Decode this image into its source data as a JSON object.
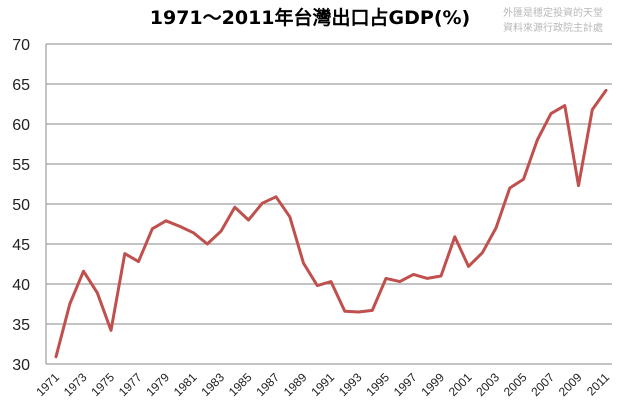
{
  "chart_data": {
    "type": "line",
    "title": "1971～2011年台灣出口占GDP(%)",
    "watermark_lines": [
      "外匯是穩定投資的天堂",
      "資料來源行政院主計處"
    ],
    "ylim": [
      30,
      70
    ],
    "yticks": [
      30,
      35,
      40,
      45,
      50,
      55,
      60,
      65,
      70
    ],
    "grid": true,
    "legend": "none",
    "x": [
      1971,
      1972,
      1973,
      1974,
      1975,
      1976,
      1977,
      1978,
      1979,
      1980,
      1981,
      1982,
      1983,
      1984,
      1985,
      1986,
      1987,
      1988,
      1989,
      1990,
      1991,
      1992,
      1993,
      1994,
      1995,
      1996,
      1997,
      1998,
      1999,
      2000,
      2001,
      2002,
      2003,
      2004,
      2005,
      2006,
      2007,
      2008,
      2009,
      2010,
      2011
    ],
    "xtick_labels": [
      "1971",
      "1973",
      "1975",
      "1977",
      "1979",
      "1981",
      "1983",
      "1985",
      "1987",
      "1989",
      "1991",
      "1993",
      "1995",
      "1997",
      "1999",
      "2001",
      "2003",
      "2005",
      "2007",
      "2009",
      "2011"
    ],
    "series": [
      {
        "color": "#c0504d",
        "values": [
          30.9,
          37.5,
          41.6,
          38.9,
          34.2,
          43.8,
          42.8,
          46.9,
          47.9,
          47.2,
          46.4,
          45.0,
          46.6,
          49.6,
          48.0,
          50.1,
          50.9,
          48.4,
          42.6,
          39.8,
          40.3,
          36.6,
          36.5,
          36.7,
          40.7,
          40.3,
          41.2,
          40.7,
          41.0,
          45.9,
          42.2,
          43.9,
          47.0,
          52.0,
          53.1,
          58.0,
          61.3,
          62.3,
          52.3,
          61.8,
          64.2
        ]
      }
    ]
  }
}
